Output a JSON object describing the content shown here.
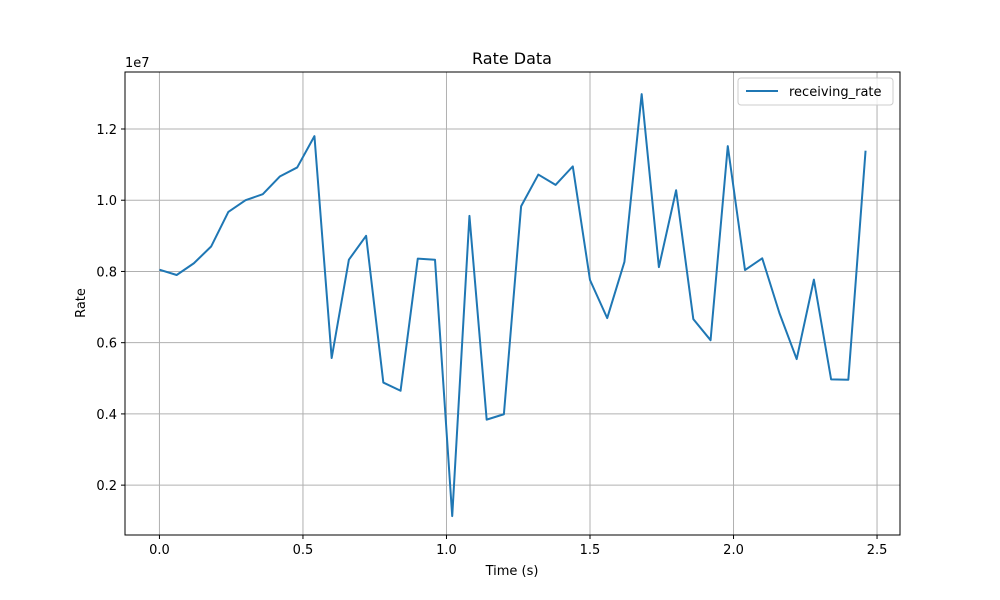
{
  "chart_data": {
    "type": "line",
    "title": "Rate Data",
    "xlabel": "Time (s)",
    "ylabel": "Rate",
    "offset_label": "1e7",
    "y_scale": 10000000,
    "xlim": [
      -0.12,
      2.58
    ],
    "ylim": [
      600000,
      13600000
    ],
    "xticks": [
      0.0,
      0.5,
      1.0,
      1.5,
      2.0,
      2.5
    ],
    "xtick_labels": [
      "0.0",
      "0.5",
      "1.0",
      "1.5",
      "2.0",
      "2.5"
    ],
    "yticks": [
      2000000,
      4000000,
      6000000,
      8000000,
      10000000,
      12000000
    ],
    "ytick_labels": [
      "0.2",
      "0.4",
      "0.6",
      "0.8",
      "1.0",
      "1.2"
    ],
    "grid": true,
    "legend_position": "top-right",
    "series": [
      {
        "name": "receiving_rate",
        "color": "#1f77b4",
        "x": [
          0.0,
          0.06,
          0.12,
          0.18,
          0.24,
          0.3,
          0.36,
          0.42,
          0.48,
          0.54,
          0.6,
          0.66,
          0.72,
          0.78,
          0.84,
          0.9,
          0.96,
          1.02,
          1.08,
          1.14,
          1.2,
          1.26,
          1.32,
          1.38,
          1.44,
          1.5,
          1.56,
          1.62,
          1.68,
          1.74,
          1.8,
          1.86,
          1.92,
          1.98,
          2.04,
          2.1,
          2.16,
          2.22,
          2.28,
          2.34,
          2.4,
          2.46
        ],
        "y": [
          8050000,
          7900000,
          8230000,
          8700000,
          9670000,
          10000000,
          10170000,
          10670000,
          10920000,
          11800000,
          5570000,
          8330000,
          9000000,
          4880000,
          4650000,
          8360000,
          8330000,
          1130000,
          9560000,
          3840000,
          3990000,
          9830000,
          10720000,
          10430000,
          10950000,
          7760000,
          6690000,
          8270000,
          12980000,
          8120000,
          10280000,
          6660000,
          6070000,
          11520000,
          8040000,
          8370000,
          6830000,
          5540000,
          7770000,
          4970000,
          4960000,
          11390000
        ]
      }
    ]
  }
}
